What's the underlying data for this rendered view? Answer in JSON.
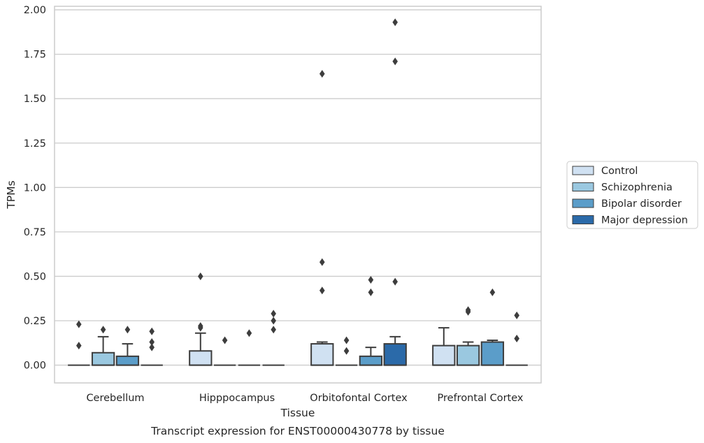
{
  "chart_data": {
    "type": "box",
    "title": "Transcript expression for ENST00000430778 by tissue",
    "xlabel": "Tissue",
    "ylabel": "TPMs",
    "ylim": [
      -0.1,
      2.02
    ],
    "yticks": [
      "0.00",
      "0.25",
      "0.50",
      "0.75",
      "1.00",
      "1.25",
      "1.50",
      "1.75",
      "2.00"
    ],
    "ytick_values": [
      0,
      0.25,
      0.5,
      0.75,
      1.0,
      1.25,
      1.5,
      1.75,
      2.0
    ],
    "grid": true,
    "legend_position": "right",
    "categories": [
      "Cerebellum",
      "Hipppocampus",
      "Orbitofontal Cortex",
      "Prefrontal Cortex"
    ],
    "series": [
      {
        "name": "Control",
        "color": "#d0e1f2",
        "boxes": [
          {
            "q1": 0,
            "median": 0,
            "q3": 0,
            "whisker_low": 0,
            "whisker_high": 0,
            "outliers": [
              0.23,
              0.11
            ]
          },
          {
            "q1": 0,
            "median": 0,
            "q3": 0.08,
            "whisker_low": 0,
            "whisker_high": 0.18,
            "outliers": [
              0.21,
              0.22,
              0.5
            ]
          },
          {
            "q1": 0,
            "median": 0,
            "q3": 0.12,
            "whisker_low": 0,
            "whisker_high": 0.13,
            "outliers": [
              0.42,
              0.58,
              1.64
            ]
          },
          {
            "q1": 0,
            "median": 0,
            "q3": 0.11,
            "whisker_low": 0,
            "whisker_high": 0.21,
            "outliers": []
          }
        ]
      },
      {
        "name": "Schizophrenia",
        "color": "#9ac8e0",
        "boxes": [
          {
            "q1": 0,
            "median": 0,
            "q3": 0.07,
            "whisker_low": 0,
            "whisker_high": 0.16,
            "outliers": [
              0.2
            ]
          },
          {
            "q1": 0,
            "median": 0,
            "q3": 0,
            "whisker_low": 0,
            "whisker_high": 0,
            "outliers": [
              0.14
            ]
          },
          {
            "q1": 0,
            "median": 0,
            "q3": 0,
            "whisker_low": 0,
            "whisker_high": 0,
            "outliers": [
              0.08,
              0.14
            ]
          },
          {
            "q1": 0,
            "median": 0,
            "q3": 0.11,
            "whisker_low": 0,
            "whisker_high": 0.13,
            "outliers": [
              0.3,
              0.31
            ]
          }
        ]
      },
      {
        "name": "Bipolar disorder",
        "color": "#5b9dc9",
        "boxes": [
          {
            "q1": 0,
            "median": 0,
            "q3": 0.05,
            "whisker_low": 0,
            "whisker_high": 0.12,
            "outliers": [
              0.2
            ]
          },
          {
            "q1": 0,
            "median": 0,
            "q3": 0,
            "whisker_low": 0,
            "whisker_high": 0,
            "outliers": [
              0.18
            ]
          },
          {
            "q1": 0,
            "median": 0,
            "q3": 0.05,
            "whisker_low": 0,
            "whisker_high": 0.1,
            "outliers": [
              0.41,
              0.48
            ]
          },
          {
            "q1": 0,
            "median": 0,
            "q3": 0.13,
            "whisker_low": 0,
            "whisker_high": 0.14,
            "outliers": [
              0.41
            ]
          }
        ]
      },
      {
        "name": "Major depression",
        "color": "#2b6aa9",
        "boxes": [
          {
            "q1": 0,
            "median": 0,
            "q3": 0,
            "whisker_low": 0,
            "whisker_high": 0,
            "outliers": [
              0.1,
              0.13,
              0.19
            ]
          },
          {
            "q1": 0,
            "median": 0,
            "q3": 0,
            "whisker_low": 0,
            "whisker_high": 0,
            "outliers": [
              0.2,
              0.25,
              0.29
            ]
          },
          {
            "q1": 0,
            "median": 0,
            "q3": 0.12,
            "whisker_low": 0,
            "whisker_high": 0.16,
            "outliers": [
              0.47,
              1.71,
              1.93
            ]
          },
          {
            "q1": 0,
            "median": 0,
            "q3": 0,
            "whisker_low": 0,
            "whisker_high": 0,
            "outliers": [
              0.15,
              0.28
            ]
          }
        ]
      }
    ]
  }
}
